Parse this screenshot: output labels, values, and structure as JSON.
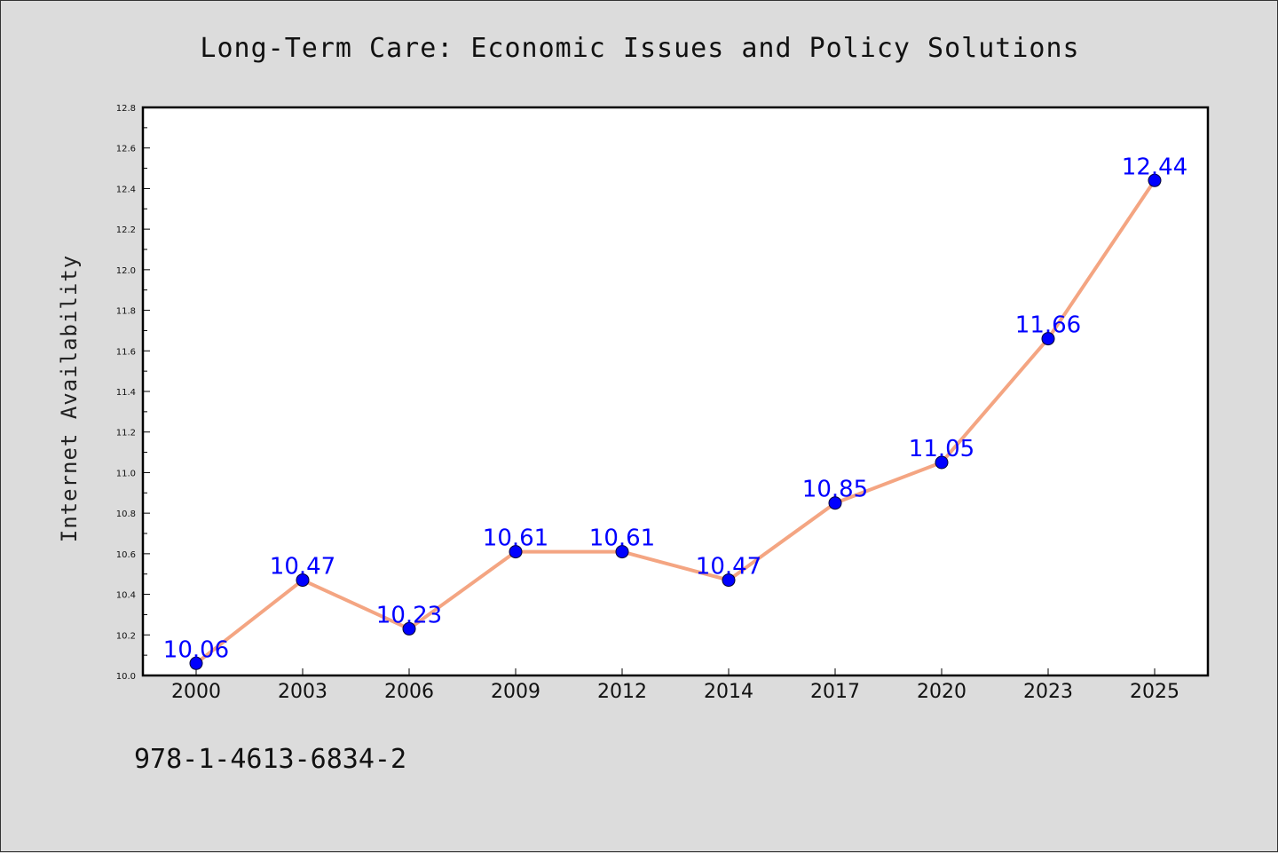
{
  "chart_data": {
    "type": "line",
    "title": "Long-Term Care: Economic Issues and Policy Solutions",
    "xlabel": "",
    "ylabel": "Internet Availability",
    "categories": [
      "2000",
      "2003",
      "2006",
      "2009",
      "2012",
      "2014",
      "2017",
      "2020",
      "2023",
      "2025"
    ],
    "values": [
      10.06,
      10.47,
      10.23,
      10.61,
      10.61,
      10.47,
      10.85,
      11.05,
      11.66,
      12.44
    ],
    "data_labels": [
      "10.06",
      "10.47",
      "10.23",
      "10.61",
      "10.61",
      "10.47",
      "10.85",
      "11.05",
      "11.66",
      "12.44"
    ],
    "ylim": [
      10.0,
      12.8
    ],
    "yticks": [
      "10.0",
      "10.2",
      "10.4",
      "10.6",
      "10.8",
      "11.0",
      "11.2",
      "11.4",
      "11.6",
      "11.8",
      "12.0",
      "12.2",
      "12.4",
      "12.6",
      "12.8"
    ],
    "grid": false,
    "line_color": "#f4a582",
    "marker_color": "#0000ff",
    "label_color": "#0000ff",
    "annotation": "978-1-4613-6834-2"
  }
}
